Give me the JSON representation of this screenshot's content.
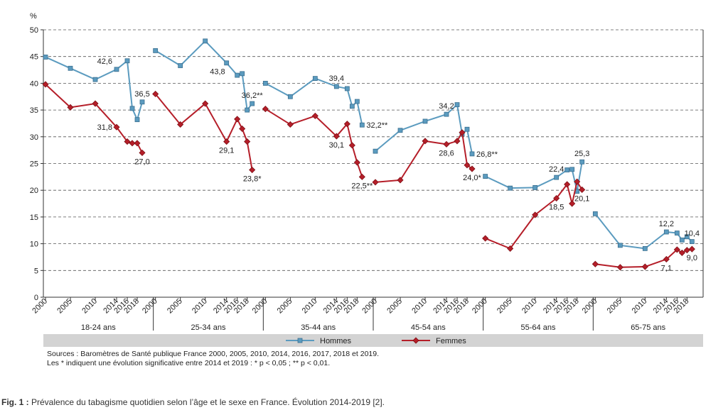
{
  "chart_data": {
    "type": "line",
    "title": "",
    "y_unit_label": "%",
    "ylim": [
      0,
      50
    ],
    "y_ticks": [
      "0",
      "5",
      "10",
      "15",
      "20",
      "25",
      "30",
      "35",
      "40",
      "45",
      "50"
    ],
    "grid": "horizontal dashed",
    "legend_position": "bottom",
    "x_tick_labels": [
      "2000",
      "2005",
      "2010",
      "2014",
      "2016",
      "2018"
    ],
    "groups": [
      {
        "label": "18-24 ans",
        "x": [
          2000,
          2005,
          2010,
          2014,
          2016,
          2017,
          2018,
          2019
        ],
        "hommes": [
          44.9,
          42.8,
          40.7,
          42.6,
          44.2,
          35.3,
          33.2,
          36.5
        ],
        "femmes": [
          39.8,
          35.5,
          36.2,
          31.8,
          29.1,
          28.8,
          28.8,
          27.0
        ]
      },
      {
        "label": "25-34 ans",
        "x": [
          2000,
          2005,
          2010,
          2014,
          2016,
          2017,
          2018,
          2019
        ],
        "hommes": [
          46.1,
          43.3,
          47.9,
          43.8,
          41.5,
          41.8,
          35.0,
          36.2
        ],
        "femmes": [
          38.0,
          32.3,
          36.2,
          29.1,
          33.3,
          31.5,
          29.1,
          23.8
        ]
      },
      {
        "label": "35-44 ans",
        "x": [
          2000,
          2005,
          2010,
          2014,
          2016,
          2017,
          2018,
          2019
        ],
        "hommes": [
          40.0,
          37.5,
          40.9,
          39.4,
          39.0,
          35.7,
          36.6,
          32.2
        ],
        "femmes": [
          35.2,
          32.3,
          33.9,
          30.1,
          32.4,
          28.4,
          25.2,
          22.5
        ]
      },
      {
        "label": "45-54 ans",
        "x": [
          2000,
          2005,
          2010,
          2014,
          2016,
          2017,
          2018,
          2019
        ],
        "hommes": [
          27.3,
          31.2,
          32.9,
          34.2,
          36.0,
          30.5,
          31.4,
          26.8
        ],
        "femmes": [
          21.5,
          21.9,
          29.2,
          28.6,
          29.2,
          30.8,
          24.7,
          24.0
        ]
      },
      {
        "label": "55-64 ans",
        "x": [
          2000,
          2005,
          2010,
          2014,
          2016,
          2017,
          2018,
          2019
        ],
        "hommes": [
          22.6,
          20.4,
          20.5,
          22.4,
          23.8,
          23.9,
          19.8,
          25.3
        ],
        "femmes": [
          11.0,
          9.1,
          15.4,
          18.5,
          21.1,
          17.5,
          21.6,
          20.1
        ]
      },
      {
        "label": "65-75 ans",
        "x": [
          2000,
          2005,
          2010,
          2014,
          2016,
          2017,
          2018,
          2019
        ],
        "hommes": [
          15.6,
          9.7,
          9.1,
          12.2,
          12.0,
          10.7,
          11.3,
          10.4
        ],
        "femmes": [
          6.2,
          5.6,
          5.7,
          7.1,
          8.9,
          8.3,
          8.8,
          9.0
        ]
      }
    ],
    "series": [
      {
        "name": "Hommes",
        "color": "#5b9bbf",
        "marker": "square"
      },
      {
        "name": "Femmes",
        "color": "#b51e29",
        "marker": "diamond"
      }
    ],
    "annotations": [
      {
        "group": 0,
        "series": "hommes",
        "index": 3,
        "text": "42,6",
        "place": "above-left"
      },
      {
        "group": 0,
        "series": "hommes",
        "index": 7,
        "text": "36,5",
        "place": "above"
      },
      {
        "group": 0,
        "series": "femmes",
        "index": 3,
        "text": "31,8",
        "place": "left"
      },
      {
        "group": 0,
        "series": "femmes",
        "index": 7,
        "text": "27,0",
        "place": "below"
      },
      {
        "group": 1,
        "series": "hommes",
        "index": 3,
        "text": "43,8",
        "place": "below-left"
      },
      {
        "group": 1,
        "series": "hommes",
        "index": 7,
        "text": "36,2**",
        "place": "above"
      },
      {
        "group": 1,
        "series": "femmes",
        "index": 3,
        "text": "29,1",
        "place": "below"
      },
      {
        "group": 1,
        "series": "femmes",
        "index": 7,
        "text": "23,8*",
        "place": "below"
      },
      {
        "group": 2,
        "series": "hommes",
        "index": 3,
        "text": "39,4",
        "place": "above"
      },
      {
        "group": 2,
        "series": "hommes",
        "index": 7,
        "text": "32,2**",
        "place": "right"
      },
      {
        "group": 2,
        "series": "femmes",
        "index": 3,
        "text": "30,1",
        "place": "below"
      },
      {
        "group": 2,
        "series": "femmes",
        "index": 7,
        "text": "22,5**",
        "place": "below"
      },
      {
        "group": 3,
        "series": "hommes",
        "index": 3,
        "text": "34,2",
        "place": "above"
      },
      {
        "group": 3,
        "series": "hommes",
        "index": 7,
        "text": "26,8**",
        "place": "right"
      },
      {
        "group": 3,
        "series": "femmes",
        "index": 3,
        "text": "28,6",
        "place": "below"
      },
      {
        "group": 3,
        "series": "femmes",
        "index": 7,
        "text": "24,0*",
        "place": "below"
      },
      {
        "group": 4,
        "series": "hommes",
        "index": 3,
        "text": "22,4",
        "place": "above"
      },
      {
        "group": 4,
        "series": "hommes",
        "index": 7,
        "text": "25,3",
        "place": "above"
      },
      {
        "group": 4,
        "series": "femmes",
        "index": 3,
        "text": "18,5",
        "place": "below"
      },
      {
        "group": 4,
        "series": "femmes",
        "index": 7,
        "text": "20,1",
        "place": "below"
      },
      {
        "group": 5,
        "series": "hommes",
        "index": 3,
        "text": "12,2",
        "place": "above"
      },
      {
        "group": 5,
        "series": "hommes",
        "index": 7,
        "text": "10,4",
        "place": "above"
      },
      {
        "group": 5,
        "series": "femmes",
        "index": 3,
        "text": "7,1",
        "place": "below"
      },
      {
        "group": 5,
        "series": "femmes",
        "index": 7,
        "text": "9,0",
        "place": "below"
      }
    ]
  },
  "sources": {
    "line1": "Sources : Baromètres de Santé publique France 2000, 2005, 2010, 2014, 2016, 2017, 2018 et 2019.",
    "line2": "Les * indiquent une évolution significative entre 2014 et 2019 : * p < 0,05 ; ** p < 0,01."
  },
  "caption": {
    "label": "Fig. 1 :",
    "text": " Prévalence du tabagisme quotidien selon l’âge et le sexe en France. Évolution 2014-2019 [2]."
  }
}
